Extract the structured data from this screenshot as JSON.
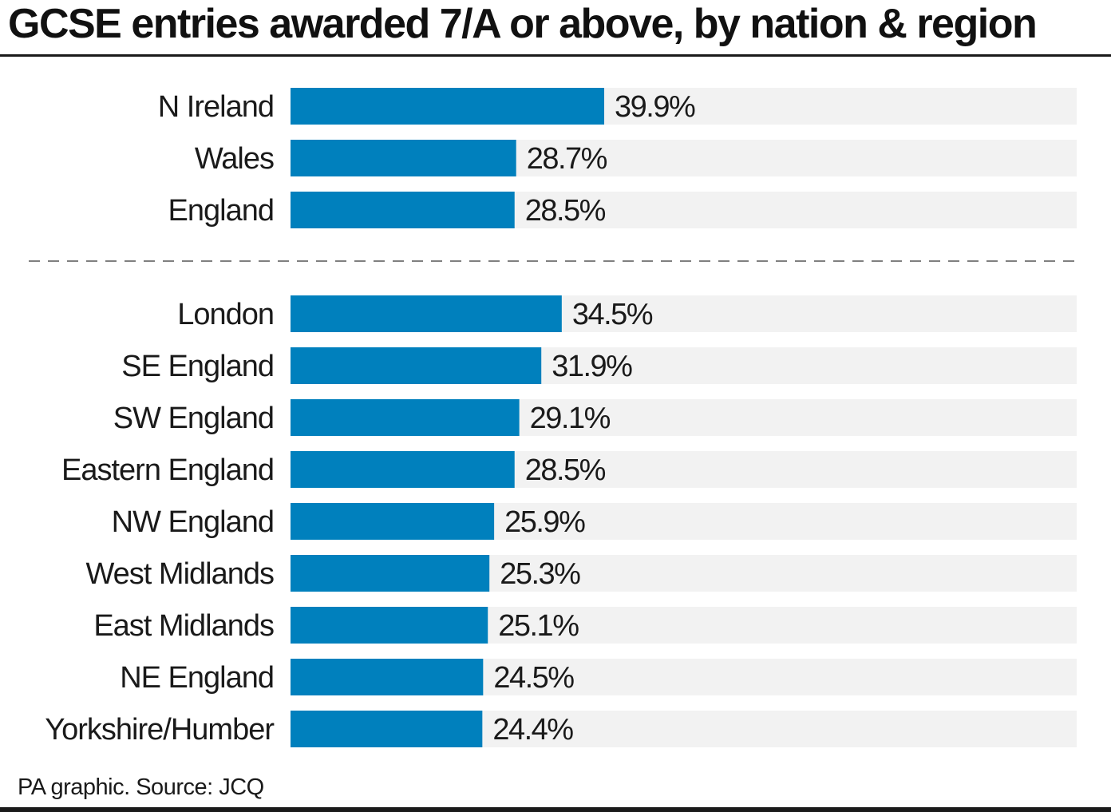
{
  "title": "GCSE entries awarded 7/A or above, by nation & region",
  "source": "PA graphic. Source: JCQ",
  "colors": {
    "bar": "#0080bd",
    "track": "#f2f2f2",
    "text": "#1a1a1a",
    "divider": "#808080"
  },
  "chart_data": {
    "type": "bar",
    "orientation": "horizontal",
    "title": "GCSE entries awarded 7/A or above, by nation & region",
    "xlim": [
      0,
      100
    ],
    "unit": "%",
    "grid": false,
    "legend": "none",
    "groups": [
      {
        "categories": [
          "N Ireland",
          "Wales",
          "England"
        ],
        "values": [
          39.9,
          28.7,
          28.5
        ],
        "labels": [
          "39.9%",
          "28.7%",
          "28.5%"
        ]
      },
      {
        "categories": [
          "London",
          "SE England",
          "SW England",
          "Eastern England",
          "NW England",
          "West Midlands",
          "East Midlands",
          "NE England",
          "Yorkshire/Humber"
        ],
        "values": [
          34.5,
          31.9,
          29.1,
          28.5,
          25.9,
          25.3,
          25.1,
          24.5,
          24.4
        ],
        "labels": [
          "34.5%",
          "31.9%",
          "29.1%",
          "28.5%",
          "25.9%",
          "25.3%",
          "25.1%",
          "24.5%",
          "24.4%"
        ]
      }
    ]
  }
}
